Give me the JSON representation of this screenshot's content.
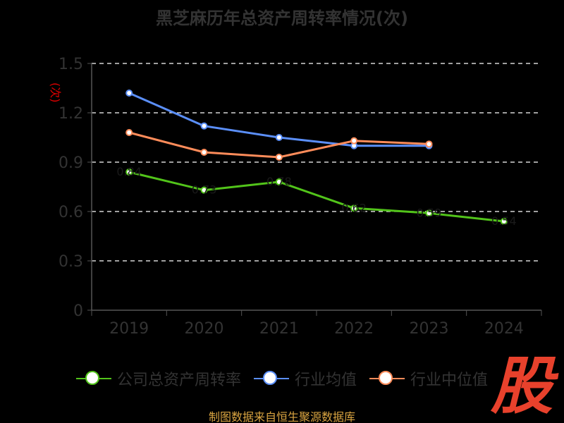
{
  "title": "黑芝麻历年总资产周转率情况(次)",
  "y_unit": "(次)",
  "source": "制图数据来自恒生聚源数据库",
  "stamp": "股",
  "colors": {
    "background": "#000000",
    "grid": "#ffffff",
    "axis": "#555555",
    "tick_text": "#333333",
    "title": "#333333",
    "unit": "#e00000",
    "source": "#d9a441",
    "stamp": "#e8412c"
  },
  "chart_data": {
    "type": "line",
    "title": "黑芝麻历年总资产周转率情况(次)",
    "ylabel": "(次)",
    "xlabel": "",
    "categories": [
      "2019",
      "2020",
      "2021",
      "2022",
      "2023",
      "2024"
    ],
    "y_ticks": [
      "0",
      "0.3",
      "0.6",
      "0.9",
      "1.2",
      "1.5"
    ],
    "ylim": [
      0,
      1.5
    ],
    "grid": true,
    "legend_position": "bottom",
    "series": [
      {
        "name": "公司总资产周转率",
        "color": "#52c41a",
        "values": [
          0.84,
          0.73,
          0.78,
          0.62,
          0.59,
          0.54
        ],
        "data_labels": [
          "0.84",
          "0.73",
          "0.78",
          "0.62",
          "0.59",
          "0.54"
        ]
      },
      {
        "name": "行业均值",
        "color": "#5b8ff9",
        "values": [
          1.32,
          1.12,
          1.05,
          1.0,
          1.0,
          null
        ]
      },
      {
        "name": "行业中位值",
        "color": "#ff8c5a",
        "values": [
          1.08,
          0.96,
          0.93,
          1.03,
          1.01,
          null
        ]
      }
    ]
  }
}
